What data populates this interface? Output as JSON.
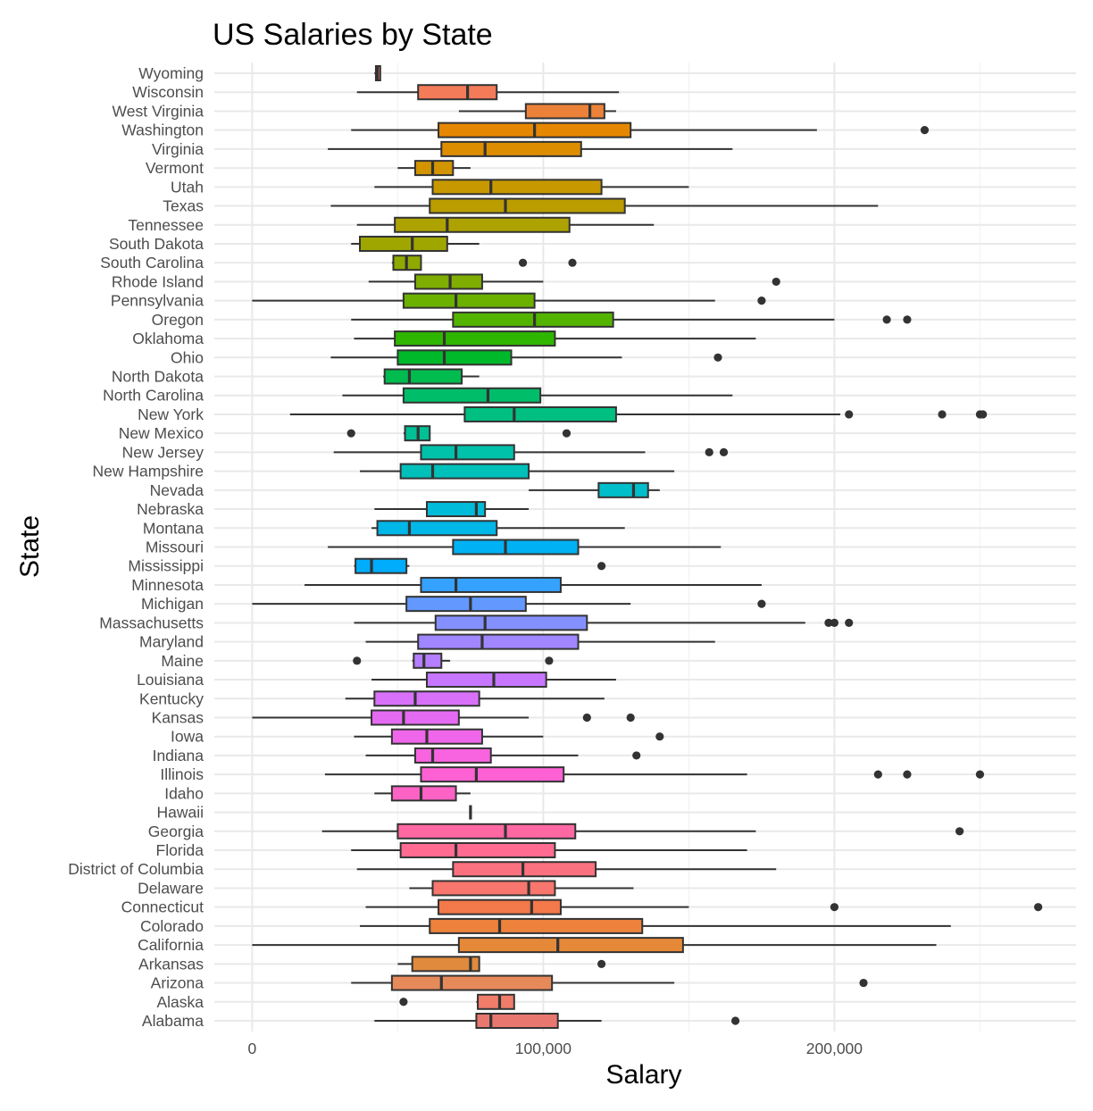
{
  "chart_data": {
    "type": "boxplot",
    "orientation": "horizontal",
    "title": "US Salaries by State",
    "xlabel": "Salary",
    "ylabel": "State",
    "xlim": [
      -13000,
      283000
    ],
    "x_ticks": [
      0,
      100000,
      200000
    ],
    "x_tick_labels": [
      "0",
      "100,000",
      "200,000"
    ],
    "grid": true,
    "legend": "none",
    "series": [
      {
        "name": "Wyoming",
        "color": "#F8766D",
        "min": 42000,
        "q1": 42500,
        "median": 43000,
        "q3": 44000,
        "max": 44000,
        "outliers": []
      },
      {
        "name": "Wisconsin",
        "color": "#F37B59",
        "min": 36000,
        "q1": 57000,
        "median": 74000,
        "q3": 84000,
        "max": 126000,
        "outliers": []
      },
      {
        "name": "West Virginia",
        "color": "#EC8239",
        "min": 71000,
        "q1": 94000,
        "median": 116000,
        "q3": 121000,
        "max": 125000,
        "outliers": []
      },
      {
        "name": "Washington",
        "color": "#E58700",
        "min": 34000,
        "q1": 64000,
        "median": 97000,
        "q3": 130000,
        "max": 194000,
        "outliers": [
          231000
        ]
      },
      {
        "name": "Virginia",
        "color": "#DC8E00",
        "min": 26000,
        "q1": 65000,
        "median": 80000,
        "q3": 113000,
        "max": 165000,
        "outliers": []
      },
      {
        "name": "Vermont",
        "color": "#D29400",
        "min": 50000,
        "q1": 56000,
        "median": 62000,
        "q3": 69000,
        "max": 75000,
        "outliers": []
      },
      {
        "name": "Utah",
        "color": "#C79800",
        "min": 42000,
        "q1": 62000,
        "median": 82000,
        "q3": 120000,
        "max": 150000,
        "outliers": []
      },
      {
        "name": "Texas",
        "color": "#BB9D00",
        "min": 27000,
        "q1": 61000,
        "median": 87000,
        "q3": 128000,
        "max": 215000,
        "outliers": []
      },
      {
        "name": "Tennessee",
        "color": "#AEA200",
        "min": 36000,
        "q1": 49000,
        "median": 67000,
        "q3": 109000,
        "max": 138000,
        "outliers": []
      },
      {
        "name": "South Dakota",
        "color": "#A0A600",
        "min": 34000,
        "q1": 37000,
        "median": 55000,
        "q3": 67000,
        "max": 78000,
        "outliers": []
      },
      {
        "name": "South Carolina",
        "color": "#90A900",
        "min": 48000,
        "q1": 48500,
        "median": 53000,
        "q3": 58000,
        "max": 58000,
        "outliers": [
          93000,
          110000
        ]
      },
      {
        "name": "Rhode Island",
        "color": "#7FAD00",
        "min": 40000,
        "q1": 56000,
        "median": 68000,
        "q3": 79000,
        "max": 100000,
        "outliers": [
          180000
        ]
      },
      {
        "name": "Pennsylvania",
        "color": "#6BB100",
        "min": 0,
        "q1": 52000,
        "median": 70000,
        "q3": 97000,
        "max": 159000,
        "outliers": [
          175000
        ]
      },
      {
        "name": "Oregon",
        "color": "#53B400",
        "min": 34000,
        "q1": 69000,
        "median": 97000,
        "q3": 124000,
        "max": 200000,
        "outliers": [
          218000,
          225000
        ]
      },
      {
        "name": "Oklahoma",
        "color": "#2FB600",
        "min": 35000,
        "q1": 49000,
        "median": 66000,
        "q3": 104000,
        "max": 173000,
        "outliers": []
      },
      {
        "name": "Ohio",
        "color": "#00B92A",
        "min": 27000,
        "q1": 50000,
        "median": 66000,
        "q3": 89000,
        "max": 127000,
        "outliers": [
          160000
        ]
      },
      {
        "name": "North Dakota",
        "color": "#00BB4E",
        "min": 45000,
        "q1": 45500,
        "median": 54000,
        "q3": 72000,
        "max": 78000,
        "outliers": []
      },
      {
        "name": "North Carolina",
        "color": "#00BD6A",
        "min": 31000,
        "q1": 52000,
        "median": 81000,
        "q3": 99000,
        "max": 165000,
        "outliers": []
      },
      {
        "name": "New York",
        "color": "#00BF81",
        "min": 13000,
        "q1": 73000,
        "median": 90000,
        "q3": 125000,
        "max": 202000,
        "outliers": [
          205000,
          237000,
          250000,
          251000
        ]
      },
      {
        "name": "New Mexico",
        "color": "#00C096",
        "min": 52000,
        "q1": 52500,
        "median": 57000,
        "q3": 61000,
        "max": 61000,
        "outliers": [
          34000,
          108000
        ]
      },
      {
        "name": "New Jersey",
        "color": "#00C1A9",
        "min": 28000,
        "q1": 58000,
        "median": 70000,
        "q3": 90000,
        "max": 135000,
        "outliers": [
          157000,
          162000
        ]
      },
      {
        "name": "New Hampshire",
        "color": "#00C0BA",
        "min": 37000,
        "q1": 51000,
        "median": 62000,
        "q3": 95000,
        "max": 145000,
        "outliers": []
      },
      {
        "name": "Nevada",
        "color": "#00BECA",
        "min": 95000,
        "q1": 119000,
        "median": 131000,
        "q3": 136000,
        "max": 140000,
        "outliers": []
      },
      {
        "name": "Nebraska",
        "color": "#00BBD9",
        "min": 42000,
        "q1": 60000,
        "median": 77000,
        "q3": 80000,
        "max": 95000,
        "outliers": []
      },
      {
        "name": "Montana",
        "color": "#00B7E7",
        "min": 41000,
        "q1": 43000,
        "median": 54000,
        "q3": 84000,
        "max": 128000,
        "outliers": []
      },
      {
        "name": "Missouri",
        "color": "#00B2F3",
        "min": 26000,
        "q1": 69000,
        "median": 87000,
        "q3": 112000,
        "max": 161000,
        "outliers": []
      },
      {
        "name": "Mississippi",
        "color": "#00ACFC",
        "min": 35000,
        "q1": 35500,
        "median": 41000,
        "q3": 53000,
        "max": 54000,
        "outliers": [
          120000
        ]
      },
      {
        "name": "Minnesota",
        "color": "#35A2FF",
        "min": 18000,
        "q1": 58000,
        "median": 70000,
        "q3": 106000,
        "max": 175000,
        "outliers": []
      },
      {
        "name": "Michigan",
        "color": "#6399FF",
        "min": 0,
        "q1": 53000,
        "median": 75000,
        "q3": 94000,
        "max": 130000,
        "outliers": [
          175000
        ]
      },
      {
        "name": "Massachusetts",
        "color": "#8590FF",
        "min": 35000,
        "q1": 63000,
        "median": 80000,
        "q3": 115000,
        "max": 190000,
        "outliers": [
          198000,
          200000,
          205000
        ]
      },
      {
        "name": "Maryland",
        "color": "#A086FF",
        "min": 39000,
        "q1": 57000,
        "median": 79000,
        "q3": 112000,
        "max": 159000,
        "outliers": []
      },
      {
        "name": "Maine",
        "color": "#B47EFF",
        "min": 55000,
        "q1": 55500,
        "median": 59000,
        "q3": 65000,
        "max": 68000,
        "outliers": [
          36000,
          102000
        ]
      },
      {
        "name": "Louisiana",
        "color": "#C777FF",
        "min": 41000,
        "q1": 60000,
        "median": 83000,
        "q3": 101000,
        "max": 125000,
        "outliers": []
      },
      {
        "name": "Kentucky",
        "color": "#D870FA",
        "min": 32000,
        "q1": 42000,
        "median": 56000,
        "q3": 78000,
        "max": 121000,
        "outliers": []
      },
      {
        "name": "Kansas",
        "color": "#E56AF2",
        "min": 0,
        "q1": 41000,
        "median": 52000,
        "q3": 71000,
        "max": 95000,
        "outliers": [
          115000,
          130000
        ]
      },
      {
        "name": "Iowa",
        "color": "#F066EA",
        "min": 35000,
        "q1": 48000,
        "median": 60000,
        "q3": 79000,
        "max": 100000,
        "outliers": [
          140000
        ]
      },
      {
        "name": "Indiana",
        "color": "#F863DF",
        "min": 39000,
        "q1": 56000,
        "median": 62000,
        "q3": 82000,
        "max": 112000,
        "outliers": [
          132000
        ]
      },
      {
        "name": "Illinois",
        "color": "#FD61D3",
        "min": 25000,
        "q1": 58000,
        "median": 77000,
        "q3": 107000,
        "max": 170000,
        "outliers": [
          215000,
          225000,
          250000
        ]
      },
      {
        "name": "Idaho",
        "color": "#FF62C5",
        "min": 42000,
        "q1": 48000,
        "median": 58000,
        "q3": 70000,
        "max": 75000,
        "outliers": []
      },
      {
        "name": "Hawaii",
        "color": "#FF64B5",
        "min": 75000,
        "q1": 75000,
        "median": 75000,
        "q3": 75000,
        "max": 75000,
        "outliers": []
      },
      {
        "name": "Georgia",
        "color": "#FF68A3",
        "min": 24000,
        "q1": 50000,
        "median": 87000,
        "q3": 111000,
        "max": 173000,
        "outliers": [
          243000
        ]
      },
      {
        "name": "Florida",
        "color": "#FF6B91",
        "min": 34000,
        "q1": 51000,
        "median": 70000,
        "q3": 104000,
        "max": 170000,
        "outliers": []
      },
      {
        "name": "District of Columbia",
        "color": "#FC717F",
        "min": 36000,
        "q1": 69000,
        "median": 93000,
        "q3": 118000,
        "max": 180000,
        "outliers": []
      },
      {
        "name": "Delaware",
        "color": "#F8766D",
        "min": 54000,
        "q1": 62000,
        "median": 95000,
        "q3": 104000,
        "max": 131000,
        "outliers": []
      },
      {
        "name": "Connecticut",
        "color": "#F3784A",
        "min": 39000,
        "q1": 64000,
        "median": 96000,
        "q3": 106000,
        "max": 150000,
        "outliers": [
          200000,
          270000
        ]
      },
      {
        "name": "Colorado",
        "color": "#EC823C",
        "min": 37000,
        "q1": 61000,
        "median": 85000,
        "q3": 134000,
        "max": 240000,
        "outliers": []
      },
      {
        "name": "California",
        "color": "#E58939",
        "min": 0,
        "q1": 71000,
        "median": 105000,
        "q3": 148000,
        "max": 235000,
        "outliers": []
      },
      {
        "name": "Arkansas",
        "color": "#E08A3E",
        "min": 50000,
        "q1": 55000,
        "median": 75000,
        "q3": 78000,
        "max": 78000,
        "outliers": [
          120000
        ]
      },
      {
        "name": "Arizona",
        "color": "#E68A5A",
        "min": 34000,
        "q1": 48000,
        "median": 65000,
        "q3": 103000,
        "max": 145000,
        "outliers": [
          210000
        ]
      },
      {
        "name": "Alaska",
        "color": "#F07C6A",
        "min": 77000,
        "q1": 77500,
        "median": 85000,
        "q3": 90000,
        "max": 90000,
        "outliers": [
          52000
        ]
      },
      {
        "name": "Alabama",
        "color": "#E8776F",
        "min": 42000,
        "q1": 77000,
        "median": 82000,
        "q3": 105000,
        "max": 120000,
        "outliers": [
          166000
        ]
      }
    ]
  }
}
